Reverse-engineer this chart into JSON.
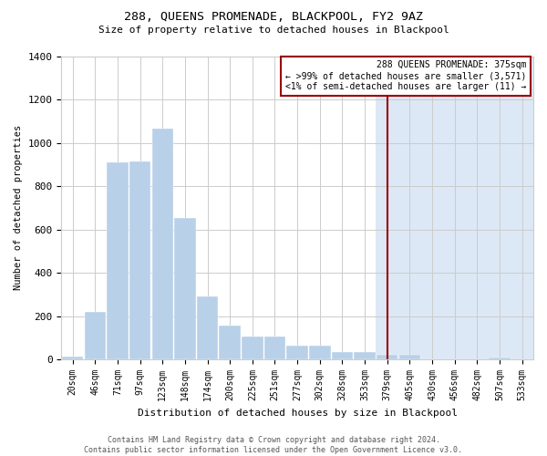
{
  "title": "288, QUEENS PROMENADE, BLACKPOOL, FY2 9AZ",
  "subtitle": "Size of property relative to detached houses in Blackpool",
  "xlabel": "Distribution of detached houses by size in Blackpool",
  "ylabel": "Number of detached properties",
  "footnote1": "Contains HM Land Registry data © Crown copyright and database right 2024.",
  "footnote2": "Contains public sector information licensed under the Open Government Licence v3.0.",
  "annotation_line1": "288 QUEENS PROMENADE: 375sqm",
  "annotation_line2": "← >99% of detached houses are smaller (3,571)",
  "annotation_line3": "<1% of semi-detached houses are larger (11) →",
  "categories": [
    "20sqm",
    "46sqm",
    "71sqm",
    "97sqm",
    "123sqm",
    "148sqm",
    "174sqm",
    "200sqm",
    "225sqm",
    "251sqm",
    "277sqm",
    "302sqm",
    "328sqm",
    "353sqm",
    "379sqm",
    "405sqm",
    "430sqm",
    "456sqm",
    "482sqm",
    "507sqm",
    "533sqm"
  ],
  "bar_heights": [
    15,
    220,
    910,
    915,
    1065,
    655,
    290,
    155,
    105,
    105,
    65,
    65,
    35,
    35,
    20,
    20,
    0,
    0,
    0,
    10,
    0
  ],
  "bar_color": "#b8d0e8",
  "red_line_color": "#990000",
  "highlight_color": "#dce8f5",
  "background_color": "#ffffff",
  "grid_color": "#cccccc",
  "red_line_bin_idx": 14,
  "ylim": [
    0,
    1400
  ],
  "yticks": [
    0,
    200,
    400,
    600,
    800,
    1000,
    1200,
    1400
  ]
}
